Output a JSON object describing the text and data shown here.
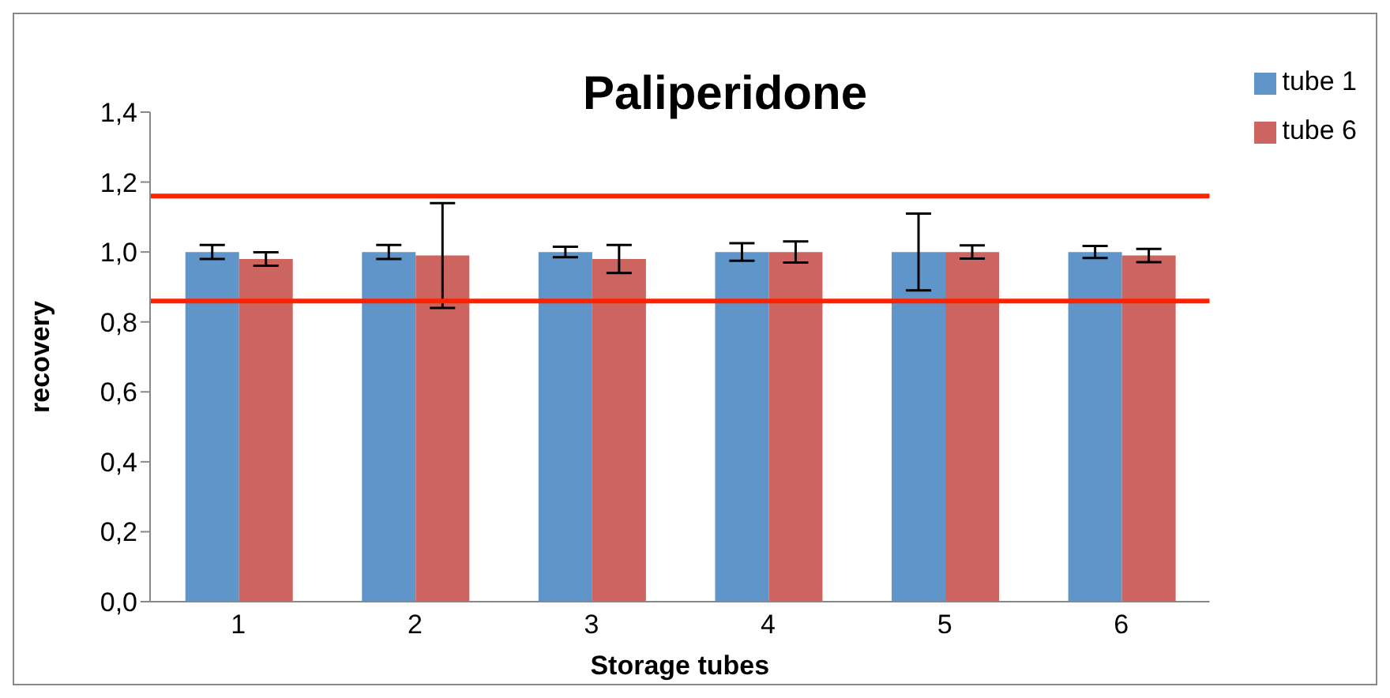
{
  "chart_data": {
    "type": "bar",
    "title": "Paliperidone",
    "xlabel": "Storage tubes",
    "ylabel": "recovery",
    "categories": [
      "1",
      "2",
      "3",
      "4",
      "5",
      "6"
    ],
    "series": [
      {
        "name": "tube 1",
        "color": "#5f95c9",
        "values": [
          1.0,
          1.0,
          1.0,
          1.0,
          1.0,
          1.0
        ],
        "errors": [
          0.02,
          0.02,
          0.015,
          0.025,
          0.11,
          0.017
        ]
      },
      {
        "name": "tube 6",
        "color": "#cc6560",
        "values": [
          0.98,
          0.99,
          0.98,
          1.0,
          1.0,
          0.99
        ],
        "errors": [
          0.019,
          0.15,
          0.04,
          0.03,
          0.019,
          0.019
        ]
      }
    ],
    "ylim": [
      0,
      1.4
    ],
    "yticks": [
      {
        "value": 0,
        "label": "0,0"
      },
      {
        "value": 0.2,
        "label": "0,2"
      },
      {
        "value": 0.4,
        "label": "0,4"
      },
      {
        "value": 0.6,
        "label": "0,6"
      },
      {
        "value": 0.8,
        "label": "0,8"
      },
      {
        "value": 1.0,
        "label": "1,0"
      },
      {
        "value": 1.2,
        "label": "1,2"
      },
      {
        "value": 1.4,
        "label": "1,4"
      }
    ],
    "ref_lines": [
      {
        "axis": "y",
        "value": 1.16,
        "color": "#ff2200"
      },
      {
        "axis": "y",
        "value": 0.86,
        "color": "#ff2200"
      }
    ],
    "grid": false,
    "legend": "top right"
  }
}
